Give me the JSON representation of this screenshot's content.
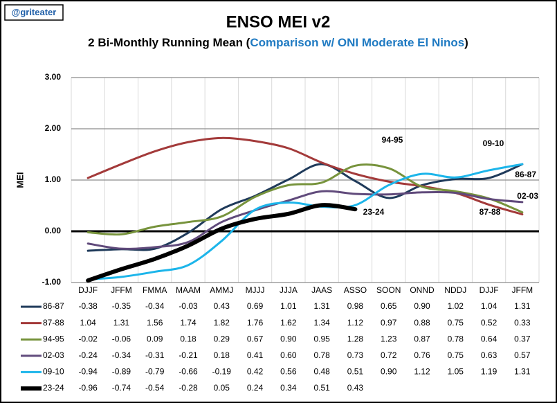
{
  "chart_data": {
    "type": "line",
    "badge": "@griteater",
    "title": "ENSO MEI v2",
    "subtitle_parts": [
      "2 Bi-Monthly Running Mean (",
      "Comparison w/ ONI Moderate El Ninos",
      ")"
    ],
    "y_label": "MEI",
    "categories": [
      "DJJF",
      "JFFM",
      "FMMA",
      "MAAM",
      "AMMJ",
      "MJJJ",
      "JJJA",
      "JAAS",
      "ASSO",
      "SOON",
      "ONND",
      "NDDJ",
      "DJJF",
      "JFFM"
    ],
    "ylim": [
      -1,
      3
    ],
    "yticks": [
      {
        "value": -1,
        "label": "-1.00"
      },
      {
        "value": 0,
        "label": "0.00"
      },
      {
        "value": 1,
        "label": "1.00"
      },
      {
        "value": 2,
        "label": "2.00"
      },
      {
        "value": 3,
        "label": "3.00"
      }
    ],
    "grid": true,
    "series": [
      {
        "name": "86-87",
        "color": "#1f3a5a",
        "width": 3,
        "values": [
          -0.38,
          -0.35,
          -0.34,
          -0.03,
          0.43,
          0.69,
          1.01,
          1.31,
          0.98,
          0.65,
          0.9,
          1.02,
          1.04,
          1.31
        ],
        "value_labels": [
          "-0.38",
          "-0.35",
          "-0.34",
          "-0.03",
          "0.43",
          "0.69",
          "1.01",
          "1.31",
          "0.98",
          "0.65",
          "0.90",
          "1.02",
          "1.04",
          "1.31"
        ]
      },
      {
        "name": "87-88",
        "color": "#a33a3a",
        "width": 3,
        "values": [
          1.04,
          1.31,
          1.56,
          1.74,
          1.82,
          1.76,
          1.62,
          1.34,
          1.12,
          0.97,
          0.88,
          0.75,
          0.52,
          0.33
        ],
        "value_labels": [
          "1.04",
          "1.31",
          "1.56",
          "1.74",
          "1.82",
          "1.76",
          "1.62",
          "1.34",
          "1.12",
          "0.97",
          "0.88",
          "0.75",
          "0.52",
          "0.33"
        ]
      },
      {
        "name": "94-95",
        "color": "#77933c",
        "width": 3,
        "values": [
          -0.02,
          -0.06,
          0.09,
          0.18,
          0.29,
          0.67,
          0.9,
          0.95,
          1.28,
          1.23,
          0.87,
          0.78,
          0.64,
          0.37
        ],
        "value_labels": [
          "-0.02",
          "-0.06",
          "0.09",
          "0.18",
          "0.29",
          "0.67",
          "0.90",
          "0.95",
          "1.28",
          "1.23",
          "0.87",
          "0.78",
          "0.64",
          "0.37"
        ]
      },
      {
        "name": "02-03",
        "color": "#604a7b",
        "width": 3,
        "values": [
          -0.24,
          -0.34,
          -0.31,
          -0.21,
          0.18,
          0.41,
          0.6,
          0.78,
          0.73,
          0.72,
          0.76,
          0.75,
          0.63,
          0.57
        ],
        "value_labels": [
          "-0.24",
          "-0.34",
          "-0.31",
          "-0.21",
          "0.18",
          "0.41",
          "0.60",
          "0.78",
          "0.73",
          "0.72",
          "0.76",
          "0.75",
          "0.63",
          "0.57"
        ]
      },
      {
        "name": "09-10",
        "color": "#1cb5ea",
        "width": 3,
        "values": [
          -0.94,
          -0.89,
          -0.79,
          -0.66,
          -0.19,
          0.42,
          0.56,
          0.48,
          0.51,
          0.9,
          1.12,
          1.05,
          1.19,
          1.31
        ],
        "value_labels": [
          "-0.94",
          "-0.89",
          "-0.79",
          "-0.66",
          "-0.19",
          "0.42",
          "0.56",
          "0.48",
          "0.51",
          "0.90",
          "1.12",
          "1.05",
          "1.19",
          "1.31"
        ]
      },
      {
        "name": "23-24",
        "color": "#000000",
        "width": 6,
        "values": [
          -0.96,
          -0.74,
          -0.54,
          -0.28,
          0.05,
          0.24,
          0.34,
          0.51,
          0.43,
          null,
          null,
          null,
          null,
          null
        ],
        "value_labels": [
          "-0.96",
          "-0.74",
          "-0.54",
          "-0.28",
          "0.05",
          "0.24",
          "0.34",
          "0.51",
          "0.43",
          null,
          null,
          null,
          null,
          null
        ]
      }
    ]
  }
}
